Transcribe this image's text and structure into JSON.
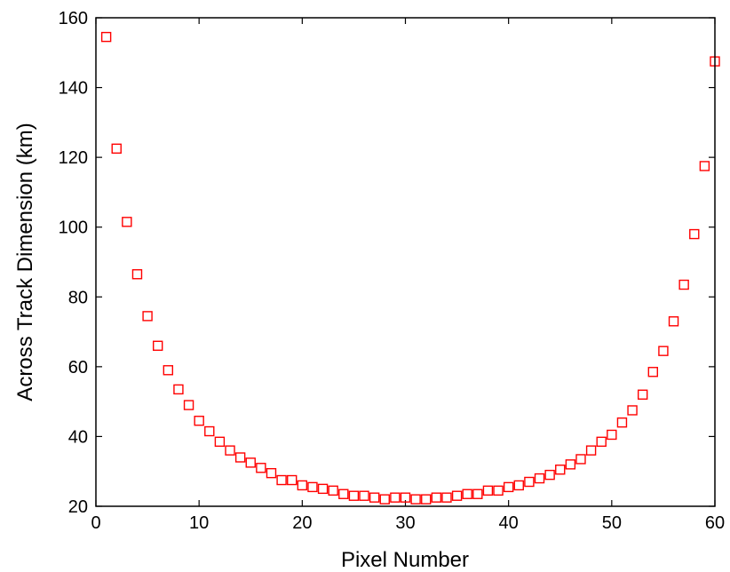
{
  "colors": {
    "marker": "#ff0000",
    "axis": "#000000",
    "background": "#ffffff"
  },
  "chart_data": {
    "type": "scatter",
    "marker": "square",
    "title": "",
    "xlabel": "Pixel Number",
    "ylabel": "Across Track Dimension (km)",
    "xlim": [
      0,
      60
    ],
    "ylim": [
      20,
      160
    ],
    "xticks": [
      0,
      10,
      20,
      30,
      40,
      50,
      60
    ],
    "yticks": [
      20,
      40,
      60,
      80,
      100,
      120,
      140,
      160
    ],
    "grid": false,
    "legend": "none",
    "series": [
      {
        "x": [
          1,
          2,
          3,
          4,
          5,
          6,
          7,
          8,
          9,
          10,
          11,
          12,
          13,
          14,
          15,
          16,
          17,
          18,
          19,
          20,
          21,
          22,
          23,
          24,
          25,
          26,
          27,
          28,
          29,
          30,
          31,
          32,
          33,
          34,
          35,
          36,
          37,
          38,
          39,
          40,
          41,
          42,
          43,
          44,
          45,
          46,
          47,
          48,
          49,
          50,
          51,
          52,
          53,
          54,
          55,
          56,
          57,
          58,
          59,
          60
        ],
        "y": [
          154.5,
          122.5,
          101.5,
          86.5,
          74.5,
          66.0,
          59.0,
          53.5,
          49.0,
          44.5,
          41.5,
          38.5,
          36.0,
          34.0,
          32.5,
          31.0,
          29.5,
          27.5,
          27.5,
          26.0,
          25.5,
          25.0,
          24.5,
          23.5,
          23.0,
          23.0,
          22.5,
          22.0,
          22.5,
          22.5,
          22.0,
          22.0,
          22.5,
          22.5,
          23.0,
          23.5,
          23.5,
          24.5,
          24.5,
          25.5,
          26.0,
          27.0,
          28.0,
          29.0,
          30.5,
          32.0,
          33.5,
          36.0,
          38.5,
          40.5,
          44.0,
          47.5,
          52.0,
          58.5,
          64.5,
          73.0,
          83.5,
          98.0,
          117.5,
          147.5
        ]
      }
    ]
  }
}
